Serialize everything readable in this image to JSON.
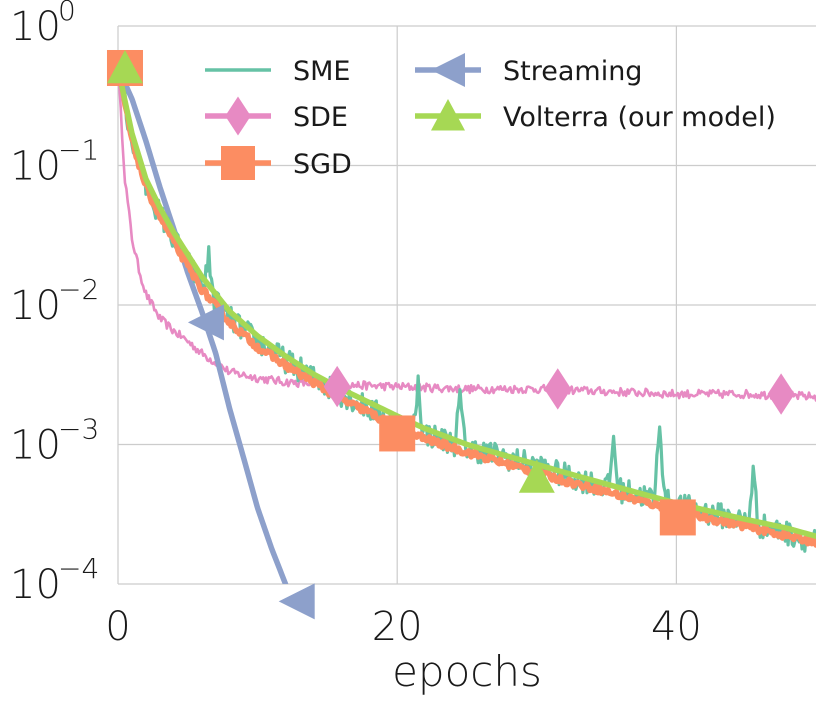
{
  "chart_data": {
    "type": "line",
    "xlabel": "epochs",
    "ylabel": "",
    "yscale": "log",
    "xlim": [
      0,
      50
    ],
    "ylim": [
      0.0001,
      1
    ],
    "x_ticks": [
      0,
      20,
      40
    ],
    "y_ticks": [
      {
        "value": 1,
        "base": "10",
        "exp": "0"
      },
      {
        "value": 0.1,
        "base": "10",
        "exp": "−1"
      },
      {
        "value": 0.01,
        "base": "10",
        "exp": "−2"
      },
      {
        "value": 0.001,
        "base": "10",
        "exp": "−3"
      },
      {
        "value": 0.0001,
        "base": "10",
        "exp": "−4"
      }
    ],
    "grid": true,
    "legend_position": "top",
    "series": [
      {
        "name": "SME",
        "color": "#66c2a5",
        "marker": "none",
        "noisy": true,
        "x": [
          0,
          1,
          2,
          3,
          4,
          5,
          6,
          8,
          10,
          12,
          14,
          16,
          18,
          20,
          22,
          25,
          28,
          30,
          32,
          35,
          38,
          40,
          42,
          45,
          48,
          50
        ],
        "y": [
          0.5,
          0.15,
          0.07,
          0.045,
          0.03,
          0.02,
          0.014,
          0.008,
          0.0055,
          0.004,
          0.003,
          0.0023,
          0.0018,
          0.0014,
          0.0012,
          0.00095,
          0.0008,
          0.0007,
          0.0006,
          0.0005,
          0.00042,
          0.00037,
          0.00033,
          0.00028,
          0.00023,
          0.0002
        ],
        "spikes": [
          {
            "x": 6.5,
            "y": 0.022
          },
          {
            "x": 21.5,
            "y": 0.0028
          },
          {
            "x": 24.5,
            "y": 0.0022
          },
          {
            "x": 35.5,
            "y": 0.0011
          },
          {
            "x": 38.8,
            "y": 0.0016
          },
          {
            "x": 45.5,
            "y": 0.00065
          }
        ]
      },
      {
        "name": "SDE",
        "color": "#e78ac3",
        "marker": "diamond",
        "noisy": true,
        "x": [
          0,
          0.5,
          1,
          1.5,
          2,
          3,
          4,
          5,
          6,
          8,
          10,
          12,
          15,
          20,
          25,
          30,
          35,
          40,
          45,
          50
        ],
        "y": [
          0.5,
          0.08,
          0.03,
          0.018,
          0.012,
          0.008,
          0.0065,
          0.0055,
          0.0045,
          0.0033,
          0.003,
          0.0028,
          0.0027,
          0.0026,
          0.0025,
          0.0025,
          0.0024,
          0.0023,
          0.0023,
          0.0022
        ],
        "marker_x": [
          15.7,
          31.5,
          47.5
        ],
        "marker_y": [
          0.0026,
          0.0025,
          0.0023
        ]
      },
      {
        "name": "SGD",
        "color": "#fc8d62",
        "marker": "square",
        "noisy": true,
        "x": [
          0,
          1,
          2,
          3,
          4,
          5,
          6,
          8,
          10,
          12,
          14,
          16,
          18,
          20,
          22,
          25,
          28,
          30,
          32,
          35,
          38,
          40,
          42,
          45,
          48,
          50
        ],
        "y": [
          0.5,
          0.15,
          0.07,
          0.043,
          0.028,
          0.019,
          0.013,
          0.0075,
          0.005,
          0.0037,
          0.0028,
          0.0021,
          0.0017,
          0.0013,
          0.0011,
          0.00088,
          0.00072,
          0.00063,
          0.00055,
          0.00046,
          0.00038,
          0.00034,
          0.0003,
          0.00026,
          0.00022,
          0.0002
        ],
        "marker_x": [
          0.5,
          20,
          40.1
        ],
        "marker_y": [
          0.5,
          0.0012,
          0.0003
        ]
      },
      {
        "name": "Streaming",
        "color": "#8da0cb",
        "marker": "triangle-left",
        "noisy": false,
        "x": [
          0,
          1,
          2,
          3,
          4,
          5,
          6,
          7,
          8,
          9,
          10,
          11,
          12
        ],
        "y": [
          0.5,
          0.3,
          0.15,
          0.07,
          0.035,
          0.017,
          0.009,
          0.0045,
          0.0018,
          0.0008,
          0.00035,
          0.00018,
          0.0001
        ],
        "marker_x": [
          0.5,
          6.3,
          12.8
        ],
        "marker_y": [
          0.5,
          0.0075,
          7.5e-05
        ]
      },
      {
        "name": "Volterra (our model)",
        "color": "#a6d854",
        "marker": "triangle-up",
        "noisy": false,
        "x": [
          0,
          1,
          2,
          3,
          4,
          5,
          6,
          8,
          10,
          12,
          14,
          16,
          18,
          20,
          22,
          25,
          28,
          30,
          32,
          35,
          38,
          40,
          42,
          45,
          48,
          50
        ],
        "y": [
          0.5,
          0.17,
          0.08,
          0.05,
          0.033,
          0.023,
          0.016,
          0.009,
          0.006,
          0.0043,
          0.0032,
          0.0025,
          0.002,
          0.0016,
          0.0013,
          0.001,
          0.00082,
          0.00072,
          0.00063,
          0.00052,
          0.00043,
          0.00038,
          0.00034,
          0.00029,
          0.00025,
          0.00022
        ],
        "marker_x": [
          0.5,
          30
        ],
        "marker_y": [
          0.5,
          0.00058
        ]
      }
    ]
  }
}
